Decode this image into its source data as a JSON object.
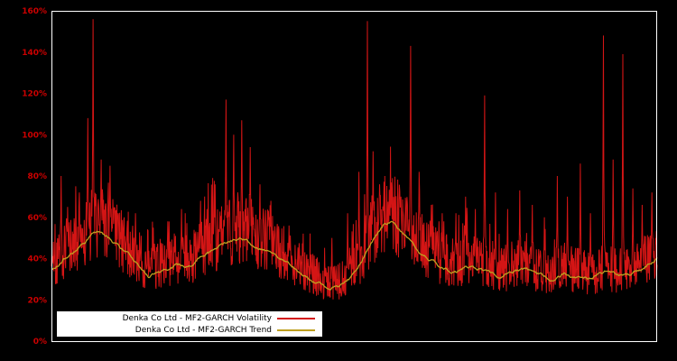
{
  "colors": {
    "background": "#000000",
    "frame": "#ffffff",
    "axis_label": "#cc0000",
    "legend_bg": "#ffffff",
    "legend_text": "#000000"
  },
  "legend": {
    "position": "bottom-left-inside"
  },
  "chart_data": {
    "type": "line",
    "title": "",
    "xlabel": "",
    "ylabel": "",
    "grid": false,
    "ylim": [
      0,
      160
    ],
    "y_tick_values": [
      0,
      20,
      40,
      60,
      80,
      100,
      120,
      140,
      160
    ],
    "y_ticks": [
      "0%",
      "20%",
      "40%",
      "60%",
      "80%",
      "100%",
      "120%",
      "140%",
      "160%"
    ],
    "x_ticks": [],
    "series": [
      {
        "name": "Denka Co Ltd - MF2-GARCH Volatility",
        "color": "#d41515",
        "style": "noisy-spiky"
      },
      {
        "name": "Denka Co Ltd - MF2-GARCH Trend",
        "color": "#bfa020",
        "style": "smooth"
      }
    ],
    "trend_points": [
      [
        0,
        34
      ],
      [
        0.02,
        40
      ],
      [
        0.042,
        44
      ],
      [
        0.064,
        50
      ],
      [
        0.079,
        53
      ],
      [
        0.101,
        48
      ],
      [
        0.124,
        42
      ],
      [
        0.146,
        36
      ],
      [
        0.161,
        31
      ],
      [
        0.183,
        35
      ],
      [
        0.206,
        37
      ],
      [
        0.228,
        36
      ],
      [
        0.25,
        40
      ],
      [
        0.28,
        46
      ],
      [
        0.31,
        50
      ],
      [
        0.332,
        47
      ],
      [
        0.355,
        44
      ],
      [
        0.377,
        40
      ],
      [
        0.407,
        34
      ],
      [
        0.437,
        28
      ],
      [
        0.459,
        25
      ],
      [
        0.481,
        27
      ],
      [
        0.504,
        33
      ],
      [
        0.519,
        42
      ],
      [
        0.534,
        50
      ],
      [
        0.548,
        56
      ],
      [
        0.563,
        58
      ],
      [
        0.578,
        52
      ],
      [
        0.601,
        45
      ],
      [
        0.623,
        40
      ],
      [
        0.645,
        36
      ],
      [
        0.668,
        34
      ],
      [
        0.69,
        36
      ],
      [
        0.712,
        34
      ],
      [
        0.735,
        31
      ],
      [
        0.757,
        33
      ],
      [
        0.779,
        35
      ],
      [
        0.802,
        32
      ],
      [
        0.824,
        30
      ],
      [
        0.847,
        33
      ],
      [
        0.869,
        31
      ],
      [
        0.891,
        30
      ],
      [
        0.914,
        33
      ],
      [
        0.936,
        31
      ],
      [
        0.958,
        32
      ],
      [
        0.981,
        36
      ],
      [
        1,
        40
      ]
    ],
    "volatility_spikes": [
      [
        0.016,
        80
      ],
      [
        0.027,
        65
      ],
      [
        0.046,
        72
      ],
      [
        0.06,
        108
      ],
      [
        0.069,
        156
      ],
      [
        0.082,
        88
      ],
      [
        0.097,
        85
      ],
      [
        0.11,
        62
      ],
      [
        0.139,
        62
      ],
      [
        0.168,
        55
      ],
      [
        0.192,
        58
      ],
      [
        0.215,
        64
      ],
      [
        0.246,
        68
      ],
      [
        0.27,
        76
      ],
      [
        0.288,
        117
      ],
      [
        0.301,
        100
      ],
      [
        0.314,
        107
      ],
      [
        0.328,
        94
      ],
      [
        0.344,
        76
      ],
      [
        0.362,
        68
      ],
      [
        0.392,
        56
      ],
      [
        0.429,
        42
      ],
      [
        0.463,
        50
      ],
      [
        0.489,
        62
      ],
      [
        0.508,
        82
      ],
      [
        0.522,
        155
      ],
      [
        0.531,
        92
      ],
      [
        0.542,
        76
      ],
      [
        0.56,
        64
      ],
      [
        0.577,
        70
      ],
      [
        0.593,
        143
      ],
      [
        0.607,
        82
      ],
      [
        0.627,
        66
      ],
      [
        0.648,
        58
      ],
      [
        0.668,
        62
      ],
      [
        0.684,
        70
      ],
      [
        0.7,
        64
      ],
      [
        0.715,
        119
      ],
      [
        0.733,
        72
      ],
      [
        0.753,
        64
      ],
      [
        0.773,
        73
      ],
      [
        0.794,
        66
      ],
      [
        0.814,
        60
      ],
      [
        0.835,
        80
      ],
      [
        0.852,
        70
      ],
      [
        0.873,
        86
      ],
      [
        0.89,
        62
      ],
      [
        0.911,
        148
      ],
      [
        0.927,
        88
      ],
      [
        0.943,
        139
      ],
      [
        0.96,
        74
      ],
      [
        0.975,
        66
      ],
      [
        0.991,
        72
      ]
    ],
    "noise": {
      "seed": 42,
      "points": 1500,
      "band_low": 0.74,
      "band_high": 1.46,
      "spike_prob": 0.045,
      "value_min": 16,
      "value_max": 156
    }
  }
}
